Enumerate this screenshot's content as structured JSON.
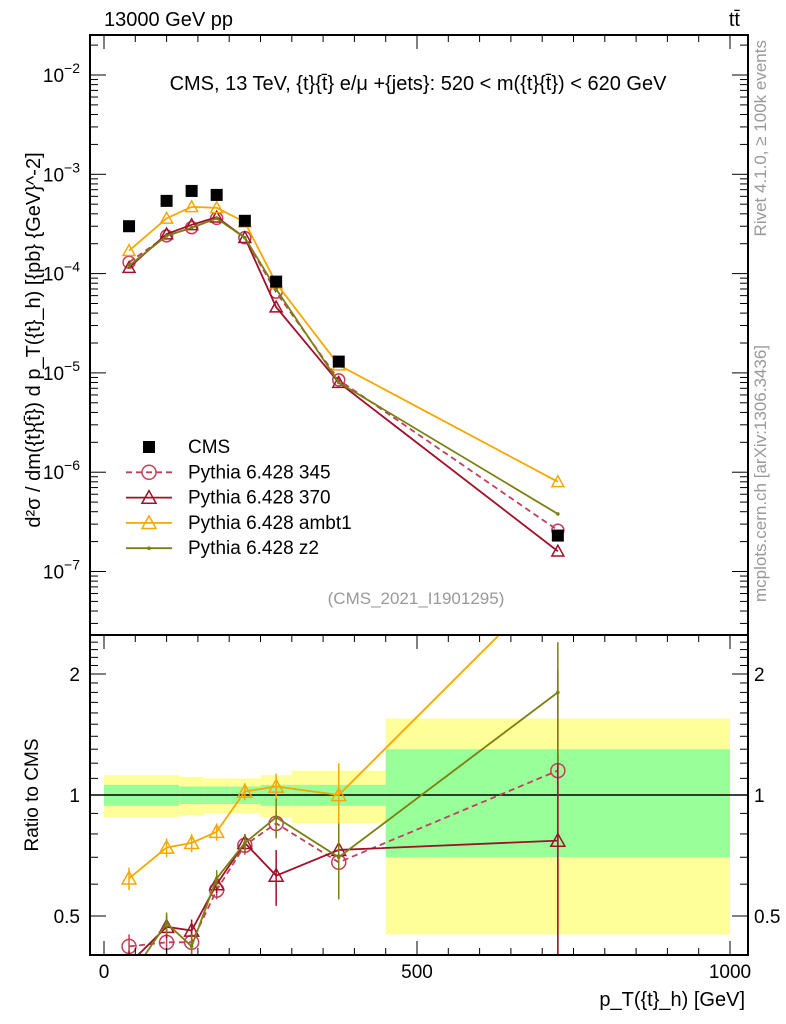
{
  "header": {
    "left": "13000 GeV pp",
    "right": "tt̄"
  },
  "side": {
    "rivet": "Rivet 4.1.0, ≥ 100k events",
    "mcplots": "mcplots.cern.ch [arXiv:1306.3436]"
  },
  "chart_data": {
    "type": "line",
    "title": "CMS, 13 TeV, {t}{t̄} e/μ +{jets}: 520 < m({t}{t̄}) < 620 GeV",
    "analysis": "(CMS_2021_I1901295)",
    "xlabel": "p_T({t}_h) [GeV]",
    "ylabel": "d²σ / dm({t}{t̄}) d p_T({t}_h) [{pb} {GeV}^-2]",
    "ratio_ylabel": "Ratio to CMS",
    "xlim": [
      -20,
      1020
    ],
    "ylim": [
      2.3e-08,
      0.025
    ],
    "yscale": "log",
    "ratio_ylim": [
      0.4,
      2.5
    ],
    "x_ticks": [
      "0",
      "500",
      "1000"
    ],
    "y_ticks": [
      "10^-2",
      "10^-3",
      "10^-4",
      "10^-5",
      "10^-6",
      "10^-7"
    ],
    "ratio_ticks": [
      "0.5",
      "1",
      "2"
    ],
    "bin_edges": [
      0,
      80,
      120,
      160,
      200,
      250,
      300,
      450,
      1000
    ],
    "x": [
      40,
      100,
      140,
      180,
      225,
      275,
      375,
      725
    ],
    "legend_position": "left-middle",
    "data": {
      "name": "CMS",
      "values": [
        0.0003,
        0.00054,
        0.00068,
        0.00062,
        0.00034,
        8.3e-05,
        1.3e-05,
        2.3e-07
      ],
      "band_inner": [
        0.06,
        0.06,
        0.05,
        0.05,
        0.05,
        0.06,
        0.06,
        0.3
      ],
      "band_outer": [
        0.12,
        0.12,
        0.11,
        0.1,
        0.1,
        0.12,
        0.15,
        0.55
      ]
    },
    "series": [
      {
        "name": "Pythia 6.428 345",
        "color": "#c0405a",
        "marker": "circle",
        "dash": true,
        "values": [
          0.00013,
          0.00024,
          0.00029,
          0.00036,
          0.00023,
          6.5e-05,
          8.5e-06,
          2.6e-07
        ],
        "ratio": [
          0.42,
          0.43,
          0.43,
          0.58,
          0.75,
          0.85,
          0.68,
          1.15
        ],
        "ratio_err": [
          0.03,
          0.03,
          0.03,
          0.03,
          0.04,
          0.06,
          0.1,
          0.9
        ]
      },
      {
        "name": "Pythia 6.428 370",
        "color": "#a0102a",
        "marker": "triangle",
        "dash": false,
        "values": [
          0.000115,
          0.00025,
          0.00031,
          0.00037,
          0.00023,
          4.6e-05,
          8e-06,
          1.6e-07
        ],
        "ratio": [
          0.38,
          0.47,
          0.46,
          0.6,
          0.76,
          0.63,
          0.73,
          0.77
        ],
        "ratio_err": [
          0.03,
          0.03,
          0.03,
          0.03,
          0.04,
          0.1,
          0.12,
          0.5
        ]
      },
      {
        "name": "Pythia 6.428 ambt1",
        "color": "#f5a800",
        "marker": "triangle",
        "dash": false,
        "values": [
          0.00017,
          0.00036,
          0.00047,
          0.00046,
          0.00033,
          8e-05,
          1.2e-05,
          8e-07
        ],
        "ratio": [
          0.62,
          0.74,
          0.76,
          0.81,
          1.02,
          1.05,
          1.0,
          3.5
        ],
        "ratio_err": [
          0.04,
          0.04,
          0.04,
          0.04,
          0.05,
          0.08,
          0.2,
          0.9
        ]
      },
      {
        "name": "Pythia 6.428 z2",
        "color": "#7a8010",
        "marker": "dot",
        "dash": false,
        "values": [
          0.00012,
          0.00024,
          0.00029,
          0.00036,
          0.00023,
          7e-05,
          8e-06,
          3.8e-07
        ],
        "ratio": [
          0.35,
          0.48,
          0.42,
          0.62,
          0.76,
          0.88,
          0.7,
          1.8
        ],
        "ratio_err": [
          0.03,
          0.03,
          0.03,
          0.03,
          0.04,
          0.1,
          0.15,
          0.6
        ]
      }
    ]
  }
}
